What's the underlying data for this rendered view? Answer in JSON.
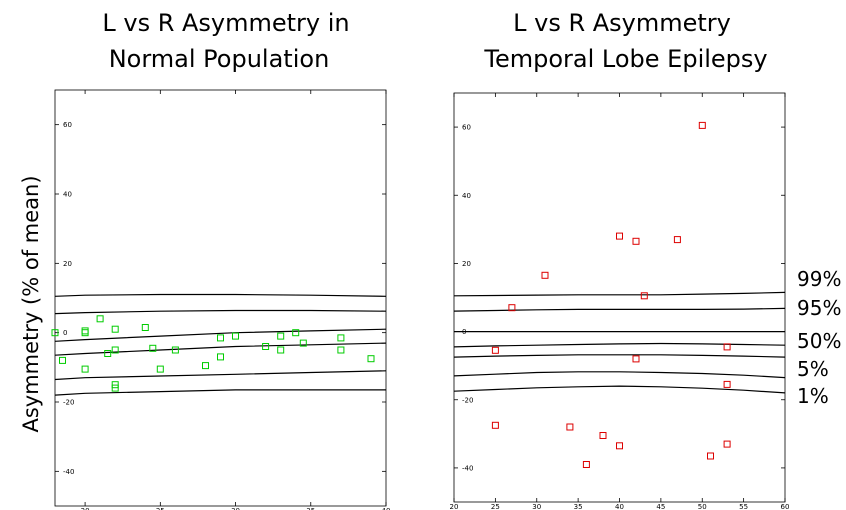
{
  "figure": {
    "ylabel": "Asymmetry (% of mean)",
    "percentile_labels": [
      "99%",
      "95%",
      "50%",
      "5%",
      "1%"
    ]
  },
  "chart_data": [
    {
      "type": "scatter",
      "title_lines": [
        "L vs R Asymmetry in",
        "Normal Population"
      ],
      "title": "L vs R Asymmetry in Normal Population",
      "xlabel": "",
      "ylabel": "Asymmetry (% of mean)",
      "xlim": [
        18,
        40
      ],
      "ylim": [
        -50,
        70
      ],
      "xticks": [
        20,
        25,
        30,
        35,
        40
      ],
      "yticks": [
        -40,
        -20,
        0,
        20,
        40,
        60
      ],
      "grid": false,
      "marker": "square",
      "color": "#00cc00",
      "points": [
        [
          18,
          0
        ],
        [
          18.5,
          -8
        ],
        [
          20,
          0
        ],
        [
          20,
          0.5
        ],
        [
          20,
          -10.5
        ],
        [
          21,
          4
        ],
        [
          21.5,
          -6
        ],
        [
          22,
          1
        ],
        [
          22,
          -5
        ],
        [
          22,
          -15
        ],
        [
          22,
          -16
        ],
        [
          24,
          1.5
        ],
        [
          24.5,
          -4.5
        ],
        [
          25,
          -10.5
        ],
        [
          26,
          -5
        ],
        [
          28,
          -9.5
        ],
        [
          29,
          -1.5
        ],
        [
          29,
          -7
        ],
        [
          30,
          -1
        ],
        [
          32,
          -4
        ],
        [
          33,
          -1
        ],
        [
          33,
          -5
        ],
        [
          34,
          0
        ],
        [
          34.5,
          -3
        ],
        [
          37,
          -1.5
        ],
        [
          37,
          -5
        ],
        [
          39,
          -7.5
        ]
      ],
      "percentile_curves": [
        {
          "label": "99%",
          "x": [
            18,
            20,
            25,
            30,
            35,
            40
          ],
          "y": [
            10.5,
            10.8,
            11.0,
            11.0,
            10.8,
            10.5
          ]
        },
        {
          "label": "95%",
          "x": [
            18,
            20,
            25,
            30,
            35,
            40
          ],
          "y": [
            5.5,
            5.8,
            6.2,
            6.4,
            6.4,
            6.2
          ]
        },
        {
          "label": "50%",
          "x": [
            18,
            20,
            25,
            30,
            35,
            40
          ],
          "y": [
            -2.5,
            -2.0,
            -1.0,
            0.0,
            0.5,
            1.0
          ]
        },
        {
          "label": "5%",
          "x": [
            18,
            20,
            25,
            30,
            35,
            40
          ],
          "y": [
            -6.5,
            -6.0,
            -5.0,
            -4.0,
            -3.5,
            -3.0
          ]
        },
        {
          "label": "1%",
          "x": [
            18,
            20,
            25,
            30,
            35,
            40
          ],
          "y": [
            -13.5,
            -13.0,
            -12.5,
            -12.0,
            -11.5,
            -11.0
          ]
        },
        {
          "label": "",
          "x": [
            18,
            20,
            25,
            30,
            35,
            40
          ],
          "y": [
            -18.0,
            -17.5,
            -17.0,
            -16.5,
            -16.5,
            -16.5
          ]
        }
      ]
    },
    {
      "type": "scatter",
      "title_lines": [
        "L vs R Asymmetry",
        "Temporal Lobe Epilepsy"
      ],
      "title": "L vs R Asymmetry Temporal Lobe Epilepsy",
      "xlabel": "",
      "ylabel": "",
      "xlim": [
        20,
        60
      ],
      "ylim": [
        -50,
        70
      ],
      "xticks": [
        20,
        25,
        30,
        35,
        40,
        45,
        50,
        55,
        60
      ],
      "yticks": [
        -40,
        -20,
        0,
        20,
        40,
        60
      ],
      "grid": false,
      "marker": "square",
      "color": "#dd0000",
      "points": [
        [
          25,
          -5.5
        ],
        [
          25,
          -27.5
        ],
        [
          27,
          7
        ],
        [
          31,
          16.5
        ],
        [
          34,
          -28
        ],
        [
          36,
          -39
        ],
        [
          38,
          -30.5
        ],
        [
          40,
          28
        ],
        [
          40,
          -33.5
        ],
        [
          42,
          26.5
        ],
        [
          42,
          -8
        ],
        [
          43,
          10.5
        ],
        [
          47,
          27
        ],
        [
          50,
          60.5
        ],
        [
          51,
          -36.5
        ],
        [
          53,
          -4.5
        ],
        [
          53,
          -15.5
        ],
        [
          53,
          -33
        ]
      ],
      "percentile_curves": [
        {
          "label": "99%",
          "x": [
            20,
            25,
            30,
            35,
            40,
            45,
            50,
            55,
            60
          ],
          "y": [
            10.5,
            10.6,
            10.7,
            10.8,
            10.8,
            10.8,
            11.0,
            11.2,
            11.5
          ]
        },
        {
          "label": "95%",
          "x": [
            20,
            25,
            30,
            35,
            40,
            45,
            50,
            55,
            60
          ],
          "y": [
            6.0,
            6.2,
            6.4,
            6.5,
            6.5,
            6.5,
            6.5,
            6.6,
            6.8
          ]
        },
        {
          "label": "50%",
          "x": [
            20,
            25,
            30,
            35,
            40,
            45,
            50,
            55,
            60
          ],
          "y": [
            0.0,
            0.0,
            0.0,
            0.0,
            0.0,
            0.0,
            0.0,
            0.0,
            0.0
          ]
        },
        {
          "label": "5%",
          "x": [
            20,
            25,
            30,
            35,
            40,
            45,
            50,
            55,
            60
          ],
          "y": [
            -4.5,
            -4.2,
            -4.0,
            -3.8,
            -3.6,
            -3.5,
            -3.6,
            -3.8,
            -4.0
          ]
        },
        {
          "label": "1%",
          "x": [
            20,
            25,
            30,
            35,
            40,
            45,
            50,
            55,
            60
          ],
          "y": [
            -7.5,
            -7.2,
            -7.0,
            -6.8,
            -6.8,
            -6.8,
            -7.0,
            -7.2,
            -7.5
          ]
        },
        {
          "label": "",
          "x": [
            20,
            25,
            30,
            35,
            40,
            45,
            50,
            55,
            60
          ],
          "y": [
            -13.0,
            -12.5,
            -12.0,
            -11.8,
            -11.8,
            -12.0,
            -12.3,
            -12.8,
            -13.5
          ]
        },
        {
          "label": "",
          "x": [
            20,
            25,
            30,
            35,
            40,
            45,
            50,
            55,
            60
          ],
          "y": [
            -17.5,
            -17.0,
            -16.5,
            -16.2,
            -16.0,
            -16.2,
            -16.6,
            -17.2,
            -18.0
          ]
        }
      ]
    }
  ]
}
